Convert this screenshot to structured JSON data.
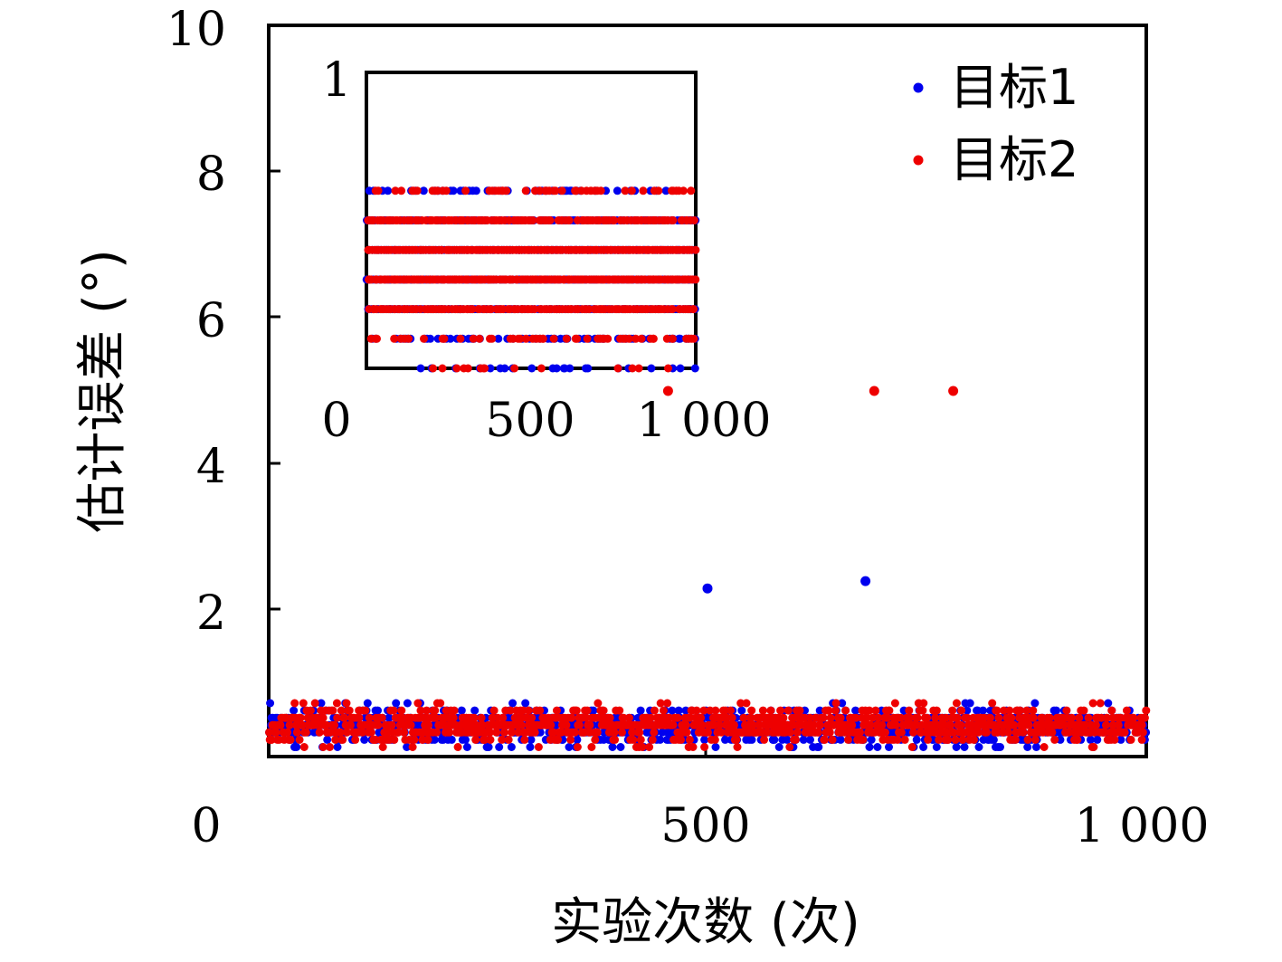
{
  "chart_data": [
    {
      "type": "scatter",
      "xlabel": "实验次数 (次)",
      "ylabel": "估计误差 (°)",
      "xlim": [
        0,
        1000
      ],
      "ylim": [
        0,
        10
      ],
      "xticks": [
        "0",
        "500",
        "1 000"
      ],
      "yticks": [
        "2",
        "4",
        "6",
        "8",
        "10"
      ],
      "legend": {
        "position": "top-right",
        "entries": [
          "目标1",
          "目标2"
        ]
      },
      "series": [
        {
          "name": "目标1",
          "color": "#0000ee",
          "band": {
            "count": 1000,
            "min": 0.0,
            "max": 0.6
          },
          "outliers": [
            {
              "x": 500,
              "y": 2.3
            },
            {
              "x": 680,
              "y": 2.4
            }
          ]
        },
        {
          "name": "目标2",
          "color": "#ee0000",
          "band": {
            "count": 1000,
            "min": 0.0,
            "max": 0.6
          },
          "outliers": [
            {
              "x": 455,
              "y": 5.0
            },
            {
              "x": 690,
              "y": 5.0
            },
            {
              "x": 780,
              "y": 5.0
            }
          ]
        }
      ]
    },
    {
      "type": "scatter",
      "inset": true,
      "xlim": [
        0,
        1000
      ],
      "ylim": [
        0,
        1
      ],
      "xticks": [
        "0",
        "500",
        "1 000"
      ],
      "yticks": [
        "1"
      ],
      "series": [
        {
          "name": "目标1",
          "color": "#0000ee",
          "levels": [
            0.0,
            0.1,
            0.2,
            0.3,
            0.4,
            0.5,
            0.6
          ]
        },
        {
          "name": "目标2",
          "color": "#ee0000",
          "levels": [
            0.0,
            0.1,
            0.2,
            0.3,
            0.4,
            0.5,
            0.6
          ]
        }
      ]
    }
  ]
}
